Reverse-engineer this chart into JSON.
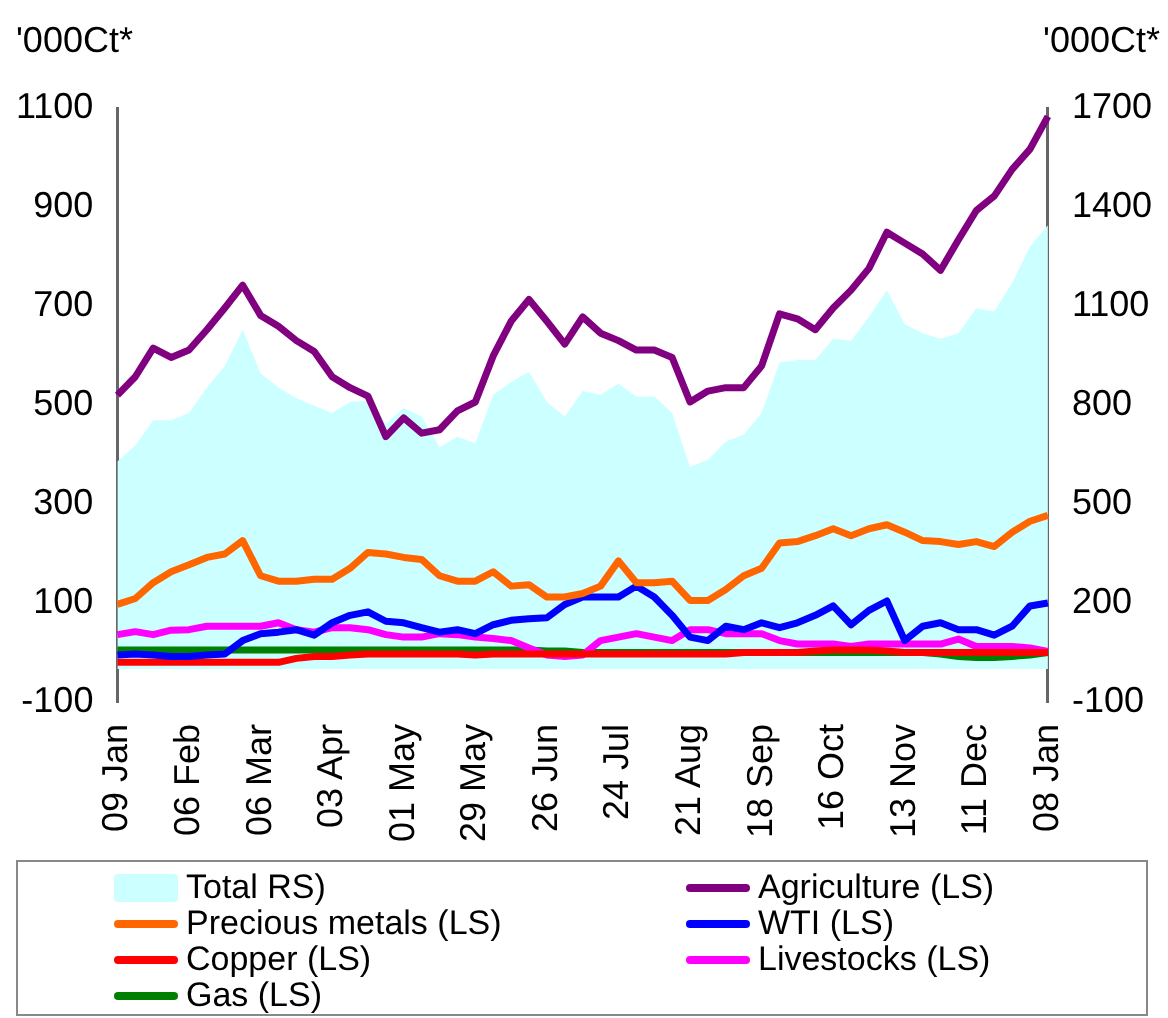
{
  "chart_data": {
    "type": "line",
    "ylabel": "'000Ct*",
    "y2label": "'000Ct*",
    "categories": [
      "09 Jan",
      null,
      null,
      null,
      "06 Feb",
      null,
      null,
      null,
      "06 Mar",
      null,
      null,
      null,
      "03 Apr",
      null,
      null,
      null,
      "01 May",
      null,
      null,
      null,
      "29 May",
      null,
      null,
      null,
      "26 Jun",
      null,
      null,
      null,
      "24 Jul",
      null,
      null,
      null,
      "21 Aug",
      null,
      null,
      null,
      "18 Sep",
      null,
      null,
      null,
      "16 Oct",
      null,
      null,
      null,
      "13 Nov",
      null,
      null,
      null,
      "11 Dec",
      null,
      null,
      null,
      "08 Jan"
    ],
    "ylim": [
      -100,
      1100
    ],
    "yticks": [
      -100,
      100,
      300,
      500,
      700,
      900,
      1100
    ],
    "y2lim": [
      -100,
      1700
    ],
    "y2ticks": [
      -100,
      200,
      500,
      800,
      1100,
      1400,
      1700
    ],
    "grid": false,
    "legend": "bottom",
    "marker": "none",
    "line_style": "solid",
    "series": [
      {
        "name": "Total RS)",
        "type": "area",
        "axis": "y2",
        "color": "#ccffff",
        "values": [
          629,
          677,
          754,
          754,
          776,
          853,
          918,
          1028,
          896,
          853,
          820,
          798,
          776,
          809,
          813,
          743,
          791,
          765,
          672,
          704,
          684,
          831,
          870,
          901,
          809,
          765,
          842,
          831,
          864,
          826,
          826,
          776,
          612,
          634,
          689,
          710,
          776,
          929,
          936,
          936,
          1001,
          995,
          1067,
          1148,
          1045,
          1017,
          1001,
          1017,
          1093,
          1083,
          1170,
          1280,
          1345
        ]
      },
      {
        "name": "Agriculture (LS)",
        "type": "line",
        "color": "#800080",
        "values": [
          520,
          557,
          615,
          596,
          611,
          652,
          696,
          742,
          681,
          659,
          630,
          608,
          557,
          535,
          518,
          436,
          474,
          443,
          450,
          488,
          506,
          599,
          669,
          713,
          669,
          623,
          678,
          645,
          630,
          611,
          611,
          596,
          506,
          528,
          535,
          535,
          579,
          684,
          674,
          652,
          696,
          732,
          776,
          849,
          827,
          805,
          772,
          834,
          893,
          922,
          976,
          1017,
          1083
        ]
      },
      {
        "name": "Precious metals (LS)",
        "type": "line",
        "color": "#ff6600",
        "values": [
          97,
          109,
          141,
          163,
          177,
          192,
          199,
          226,
          155,
          144,
          144,
          148,
          148,
          170,
          202,
          199,
          192,
          188,
          155,
          144,
          144,
          163,
          134,
          137,
          112,
          112,
          119,
          134,
          185,
          141,
          141,
          144,
          105,
          105,
          127,
          155,
          170,
          221,
          224,
          236,
          250,
          236,
          250,
          258,
          243,
          226,
          224,
          218,
          224,
          214,
          243,
          265,
          277
        ]
      },
      {
        "name": "WTI (LS)",
        "type": "line",
        "color": "#0000ff",
        "values": [
          -5,
          -3,
          -5,
          -8,
          -8,
          -5,
          -3,
          24,
          38,
          41,
          46,
          35,
          60,
          75,
          82,
          63,
          60,
          50,
          41,
          46,
          38,
          56,
          65,
          68,
          70,
          97,
          112,
          112,
          112,
          134,
          112,
          75,
          31,
          24,
          53,
          46,
          60,
          50,
          60,
          75,
          94,
          56,
          85,
          104,
          24,
          53,
          60,
          46,
          46,
          35,
          53,
          94,
          100
        ]
      },
      {
        "name": "Copper (LS)",
        "type": "line",
        "color": "#ff0000",
        "values": [
          -20,
          -20,
          -20,
          -20,
          -20,
          -20,
          -20,
          -20,
          -20,
          -20,
          -12,
          -8,
          -8,
          -5,
          -3,
          -3,
          -3,
          -3,
          -3,
          -3,
          -5,
          -3,
          -3,
          -3,
          -3,
          -3,
          -3,
          -3,
          -3,
          -3,
          -3,
          -3,
          -3,
          -3,
          -3,
          0,
          0,
          0,
          0,
          3,
          5,
          5,
          5,
          3,
          0,
          0,
          0,
          0,
          0,
          0,
          0,
          0,
          0
        ]
      },
      {
        "name": "Livestocks (LS)",
        "type": "line",
        "color": "#ff00ff",
        "values": [
          36,
          42,
          36,
          45,
          46,
          53,
          53,
          53,
          53,
          60,
          46,
          41,
          50,
          50,
          46,
          36,
          31,
          31,
          38,
          36,
          31,
          28,
          24,
          9,
          -5,
          -8,
          -5,
          24,
          31,
          38,
          31,
          24,
          46,
          46,
          38,
          38,
          38,
          24,
          17,
          17,
          17,
          12,
          17,
          17,
          17,
          17,
          17,
          27,
          12,
          12,
          12,
          9,
          2
        ]
      },
      {
        "name": "Gas (LS)",
        "type": "line",
        "color": "#008000",
        "values": [
          5,
          5,
          5,
          5,
          5,
          5,
          5,
          5,
          5,
          5,
          5,
          5,
          5,
          5,
          5,
          5,
          5,
          5,
          5,
          5,
          5,
          5,
          5,
          5,
          3,
          3,
          0,
          0,
          0,
          0,
          0,
          0,
          0,
          0,
          0,
          0,
          0,
          0,
          0,
          0,
          0,
          0,
          0,
          0,
          0,
          0,
          -3,
          -8,
          -10,
          -10,
          -8,
          -5,
          0
        ]
      }
    ]
  }
}
